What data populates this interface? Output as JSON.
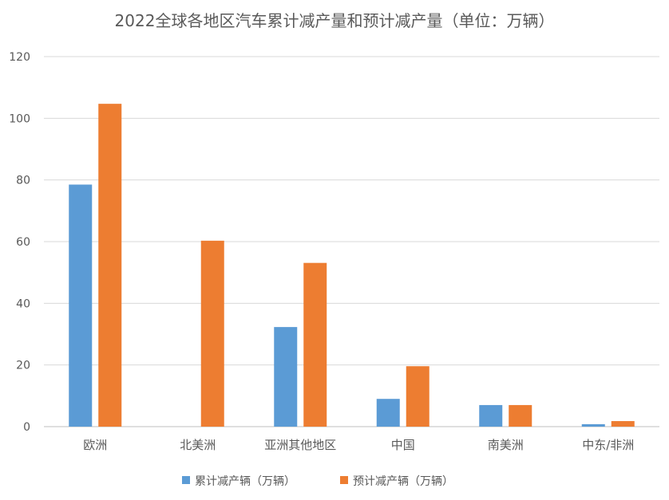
{
  "chart_data": {
    "type": "bar",
    "title": "2022全球各地区汽车累计减产量和预计减产量（单位：万辆）",
    "categories": [
      "欧洲",
      "北美洲",
      "亚洲其他地区",
      "中国",
      "南美洲",
      "中东/非洲"
    ],
    "series": [
      {
        "name": "累计减产辆（万辆）",
        "color": "#5b9bd5",
        "values": [
          78.5,
          0,
          32.3,
          9.0,
          7.0,
          0.8
        ]
      },
      {
        "name": "预计减产辆（万辆）",
        "color": "#ed7d31",
        "values": [
          104.7,
          60.3,
          53.1,
          19.6,
          7.0,
          1.8
        ]
      }
    ],
    "yticks": [
      "0",
      "20",
      "40",
      "60",
      "80",
      "100",
      "120"
    ],
    "ylim": [
      0,
      120
    ],
    "grid": true,
    "legend_position": "bottom",
    "xlabel": "",
    "ylabel": ""
  }
}
